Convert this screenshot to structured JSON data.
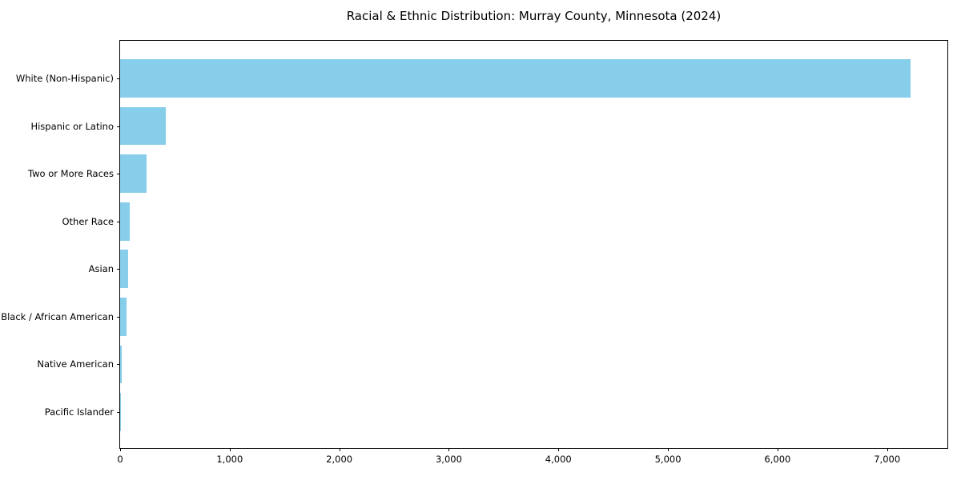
{
  "figure": {
    "background_color": "#ffffff",
    "spine_color": "#000000",
    "text_color": "#000000"
  },
  "chart_data": {
    "type": "bar",
    "orientation": "horizontal",
    "title": "Racial & Ethnic Distribution: Murray County, Minnesota (2024)",
    "xlabel": "",
    "ylabel": "",
    "categories": [
      "White (Non-Hispanic)",
      "Hispanic or Latino",
      "Two or More Races",
      "Other Race",
      "Asian",
      "Black / African American",
      "Native American",
      "Pacific Islander"
    ],
    "values": [
      7215,
      420,
      242,
      85,
      75,
      58,
      15,
      2
    ],
    "bar_color": "#87CEEB",
    "xlim": [
      0,
      7565
    ],
    "x_ticks": [
      0,
      1000,
      2000,
      3000,
      4000,
      5000,
      6000,
      7000
    ],
    "x_tick_labels": [
      "0",
      "1,000",
      "2,000",
      "3,000",
      "4,000",
      "5,000",
      "6,000",
      "7,000"
    ],
    "grid": false,
    "legend": "none",
    "bar_fraction_of_row": 0.8
  }
}
